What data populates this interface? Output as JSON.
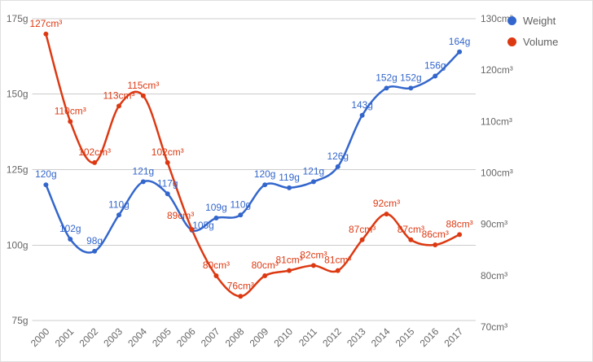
{
  "chart_data": {
    "type": "line",
    "curve": "smooth",
    "categories": [
      "2000",
      "2001",
      "2002",
      "2003",
      "2004",
      "2005",
      "2006",
      "2007",
      "2008",
      "2009",
      "2010",
      "2011",
      "2012",
      "2013",
      "2014",
      "2015",
      "2016",
      "2017"
    ],
    "series": [
      {
        "name": "Weight",
        "unit": "g",
        "color": "#3366cc",
        "axis": "left",
        "values": [
          120,
          102,
          98,
          110,
          121,
          117,
          105,
          109,
          110,
          120,
          119,
          121,
          126,
          143,
          152,
          152,
          156,
          164
        ],
        "point_labels": [
          "120g",
          "102g",
          "98g",
          "110g",
          "121g",
          "117g",
          "105g",
          "109g",
          "110g",
          "120g",
          "119g",
          "121g",
          "126g",
          "143g",
          "152g",
          "152g",
          "156g",
          "164g"
        ]
      },
      {
        "name": "Volume",
        "unit": "cm³",
        "color": "#dc3912",
        "axis": "right",
        "values": [
          127,
          110,
          102,
          113,
          115,
          102,
          89,
          80,
          76,
          80,
          81,
          82,
          81,
          87,
          92,
          87,
          86,
          88
        ],
        "point_labels": [
          "127cm³",
          "110cm³",
          "102cm³",
          "113cm³",
          "115cm³",
          "102cm³",
          "89cm³",
          "80cm³",
          "76cm³",
          "80cm³",
          "81cm³",
          "82cm³",
          "81cm³",
          "87cm³",
          "92cm³",
          "87cm³",
          "86cm³",
          "88cm³"
        ]
      }
    ],
    "left_axis": {
      "min": 75,
      "max": 175,
      "ticks": [
        "175g",
        "150g",
        "125g",
        "100g",
        "75g"
      ]
    },
    "right_axis": {
      "min": 70,
      "max": 130,
      "ticks": [
        "130cm³",
        "120cm³",
        "110cm³",
        "100cm³",
        "90cm³",
        "80cm³",
        "70cm³"
      ]
    },
    "legend": {
      "position": "top-right",
      "entries": [
        {
          "label": "Weight",
          "color": "#3366cc"
        },
        {
          "label": "Volume",
          "color": "#dc3912"
        }
      ]
    },
    "grid": {
      "visible": true,
      "color": "#cccccc"
    },
    "axis_text_color": "#666666",
    "background": "#ffffff"
  }
}
